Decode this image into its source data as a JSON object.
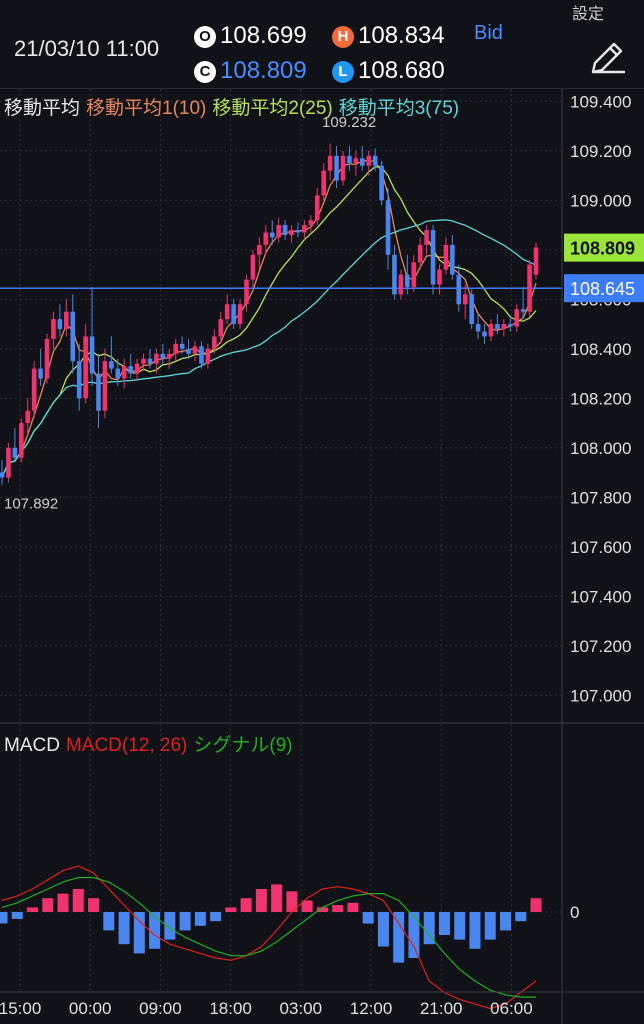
{
  "header": {
    "datetime": "21/03/10 11:00",
    "open": {
      "badge": "O",
      "value": "108.699"
    },
    "high": {
      "badge": "H",
      "value": "108.834"
    },
    "close": {
      "badge": "C",
      "value": "108.809"
    },
    "low": {
      "badge": "L",
      "value": "108.680"
    },
    "price_type": "Bid",
    "top_cutoff_text": "設定",
    "edit_icon": "pencil-icon"
  },
  "legend": {
    "main_title": "移動平均",
    "ma1": "移動平均1(10)",
    "ma2": "移動平均2(25)",
    "ma3": "移動平均3(75)",
    "macd_title": "MACD",
    "macd": "MACD(12, 26)",
    "signal": "シグナル(9)"
  },
  "colors": {
    "bull": "#f0336e",
    "bear": "#4a86f0",
    "ma1": "#e8875a",
    "ma2": "#b7e05a",
    "ma3": "#5fd6d6",
    "macd": "#e02020",
    "signal": "#20b020",
    "current_price_bg": "#9be53a",
    "hline_bg": "#3d7bff",
    "badge_o": "#ffffff",
    "badge_h": "#f26a3a",
    "badge_c": "#ffffff",
    "badge_l": "#2196f3"
  },
  "chart_data": [
    {
      "type": "candlestick",
      "y_axis_ticks": [
        "109.400",
        "109.200",
        "109.000",
        "108.800",
        "108.600",
        "108.400",
        "108.200",
        "108.000",
        "107.800",
        "107.600",
        "107.400",
        "107.200",
        "107.000"
      ],
      "ylim": [
        106.9,
        109.45
      ],
      "x_ticks": [
        "15:00",
        "00:00",
        "09:00",
        "18:00",
        "03:00",
        "12:00",
        "21:00",
        "06:00"
      ],
      "annotations": [
        {
          "label": "109.232",
          "value": 109.232
        },
        {
          "label": "107.892",
          "value": 107.892
        }
      ],
      "current_price_label": "108.809",
      "current_price": 108.809,
      "horizontal_line_label": "108.645",
      "horizontal_line": 108.645,
      "candles": [
        [
          107.9,
          107.95,
          107.85,
          107.88
        ],
        [
          107.88,
          108.02,
          107.86,
          108.0
        ],
        [
          108.0,
          108.08,
          107.95,
          107.96
        ],
        [
          107.96,
          108.12,
          107.94,
          108.1
        ],
        [
          108.1,
          108.2,
          108.05,
          108.15
        ],
        [
          108.15,
          108.35,
          108.12,
          108.32
        ],
        [
          108.32,
          108.4,
          108.25,
          108.28
        ],
        [
          108.28,
          108.46,
          108.26,
          108.44
        ],
        [
          108.44,
          108.55,
          108.4,
          108.52
        ],
        [
          108.52,
          108.58,
          108.45,
          108.48
        ],
        [
          108.48,
          108.6,
          108.45,
          108.55
        ],
        [
          108.55,
          108.62,
          108.3,
          108.35
        ],
        [
          108.35,
          108.42,
          108.15,
          108.2
        ],
        [
          108.2,
          108.5,
          108.18,
          108.45
        ],
        [
          108.45,
          108.65,
          108.25,
          108.3
        ],
        [
          108.3,
          108.38,
          108.08,
          108.15
        ],
        [
          108.15,
          108.4,
          108.12,
          108.35
        ],
        [
          108.35,
          108.45,
          108.3,
          108.32
        ],
        [
          108.32,
          108.36,
          108.25,
          108.28
        ],
        [
          108.28,
          108.36,
          108.24,
          108.33
        ],
        [
          108.33,
          108.38,
          108.28,
          108.3
        ],
        [
          108.3,
          108.36,
          108.27,
          108.34
        ],
        [
          108.34,
          108.38,
          108.31,
          108.36
        ],
        [
          108.36,
          108.4,
          108.32,
          108.34
        ],
        [
          108.34,
          108.4,
          108.3,
          108.38
        ],
        [
          108.38,
          108.42,
          108.34,
          108.36
        ],
        [
          108.36,
          108.4,
          108.32,
          108.38
        ],
        [
          108.38,
          108.44,
          108.35,
          108.42
        ],
        [
          108.42,
          108.45,
          108.38,
          108.4
        ],
        [
          108.4,
          108.44,
          108.36,
          108.38
        ],
        [
          108.38,
          108.43,
          108.35,
          108.41
        ],
        [
          108.41,
          108.43,
          108.32,
          108.34
        ],
        [
          108.34,
          108.42,
          108.32,
          108.4
        ],
        [
          108.4,
          108.48,
          108.38,
          108.45
        ],
        [
          108.45,
          108.55,
          108.42,
          108.52
        ],
        [
          108.52,
          108.62,
          108.5,
          108.58
        ],
        [
          108.58,
          108.6,
          108.48,
          108.5
        ],
        [
          108.5,
          108.6,
          108.48,
          108.58
        ],
        [
          108.58,
          108.7,
          108.55,
          108.68
        ],
        [
          108.68,
          108.8,
          108.65,
          108.78
        ],
        [
          108.78,
          108.85,
          108.72,
          108.82
        ],
        [
          108.82,
          108.9,
          108.78,
          108.87
        ],
        [
          108.87,
          108.92,
          108.82,
          108.85
        ],
        [
          108.85,
          108.93,
          108.83,
          108.9
        ],
        [
          108.9,
          108.92,
          108.84,
          108.86
        ],
        [
          108.86,
          108.9,
          108.83,
          108.88
        ],
        [
          108.88,
          108.91,
          108.85,
          108.87
        ],
        [
          108.87,
          108.92,
          108.84,
          108.9
        ],
        [
          108.9,
          108.94,
          108.87,
          108.92
        ],
        [
          108.92,
          109.05,
          108.9,
          109.02
        ],
        [
          109.02,
          109.15,
          109.0,
          109.12
        ],
        [
          109.12,
          109.23,
          109.08,
          109.18
        ],
        [
          109.18,
          109.22,
          109.05,
          109.08
        ],
        [
          109.08,
          109.2,
          109.06,
          109.18
        ],
        [
          109.18,
          109.22,
          109.12,
          109.15
        ],
        [
          109.15,
          109.2,
          109.1,
          109.17
        ],
        [
          109.17,
          109.22,
          109.12,
          109.14
        ],
        [
          109.14,
          109.2,
          109.1,
          109.18
        ],
        [
          109.18,
          109.21,
          109.12,
          109.14
        ],
        [
          109.14,
          109.16,
          108.98,
          109.0
        ],
        [
          109.0,
          109.05,
          108.72,
          108.78
        ],
        [
          108.78,
          108.82,
          108.6,
          108.62
        ],
        [
          108.62,
          108.72,
          108.6,
          108.7
        ],
        [
          108.7,
          108.78,
          108.62,
          108.65
        ],
        [
          108.65,
          108.78,
          108.63,
          108.75
        ],
        [
          108.75,
          108.85,
          108.72,
          108.82
        ],
        [
          108.82,
          108.9,
          108.78,
          108.88
        ],
        [
          108.88,
          108.9,
          108.62,
          108.66
        ],
        [
          108.66,
          108.74,
          108.62,
          108.72
        ],
        [
          108.72,
          108.85,
          108.7,
          108.82
        ],
        [
          108.82,
          108.86,
          108.68,
          108.7
        ],
        [
          108.7,
          108.74,
          108.55,
          108.58
        ],
        [
          108.58,
          108.66,
          108.52,
          108.62
        ],
        [
          108.62,
          108.64,
          108.48,
          108.5
        ],
        [
          108.5,
          108.54,
          108.44,
          108.47
        ],
        [
          108.47,
          108.5,
          108.42,
          108.45
        ],
        [
          108.45,
          108.52,
          108.43,
          108.5
        ],
        [
          108.5,
          108.54,
          108.46,
          108.48
        ],
        [
          108.48,
          108.52,
          108.45,
          108.5
        ],
        [
          108.5,
          108.53,
          108.47,
          108.49
        ],
        [
          108.49,
          108.58,
          108.47,
          108.56
        ],
        [
          108.56,
          108.65,
          108.52,
          108.55
        ],
        [
          108.55,
          108.76,
          108.53,
          108.74
        ],
        [
          108.7,
          108.83,
          108.68,
          108.81
        ]
      ]
    },
    {
      "type": "bar",
      "title": "MACD",
      "zero_line_label": "0",
      "series": [
        {
          "name": "MACD(12, 26)",
          "kind": "line",
          "values": [
            0.05,
            0.07,
            0.1,
            0.14,
            0.18,
            0.2,
            0.17,
            0.1,
            0.03,
            -0.04,
            -0.1,
            -0.14,
            -0.16,
            -0.18,
            -0.2,
            -0.21,
            -0.19,
            -0.15,
            -0.08,
            0.0,
            0.06,
            0.1,
            0.11,
            0.1,
            0.08,
            0.05,
            -0.05,
            -0.15,
            -0.3,
            -0.35,
            -0.38,
            -0.4,
            -0.42,
            -0.4,
            -0.35,
            -0.3
          ]
        },
        {
          "name": "シグナル(9)",
          "kind": "line",
          "values": [
            0.02,
            0.04,
            0.07,
            0.1,
            0.13,
            0.15,
            0.15,
            0.13,
            0.09,
            0.04,
            -0.02,
            -0.07,
            -0.11,
            -0.14,
            -0.17,
            -0.19,
            -0.19,
            -0.17,
            -0.13,
            -0.08,
            -0.03,
            0.02,
            0.05,
            0.07,
            0.08,
            0.08,
            0.05,
            -0.02,
            -0.1,
            -0.18,
            -0.25,
            -0.3,
            -0.34,
            -0.36,
            -0.37,
            -0.37
          ]
        },
        {
          "name": "histogram",
          "kind": "bar",
          "values": [
            -0.05,
            -0.03,
            0.02,
            0.06,
            0.08,
            0.1,
            0.06,
            -0.08,
            -0.14,
            -0.18,
            -0.16,
            -0.12,
            -0.08,
            -0.06,
            -0.04,
            0.02,
            0.06,
            0.1,
            0.12,
            0.09,
            0.05,
            0.02,
            0.03,
            0.04,
            -0.05,
            -0.15,
            -0.22,
            -0.2,
            -0.14,
            -0.1,
            -0.12,
            -0.16,
            -0.12,
            -0.08,
            -0.04,
            0.06
          ]
        }
      ]
    }
  ]
}
